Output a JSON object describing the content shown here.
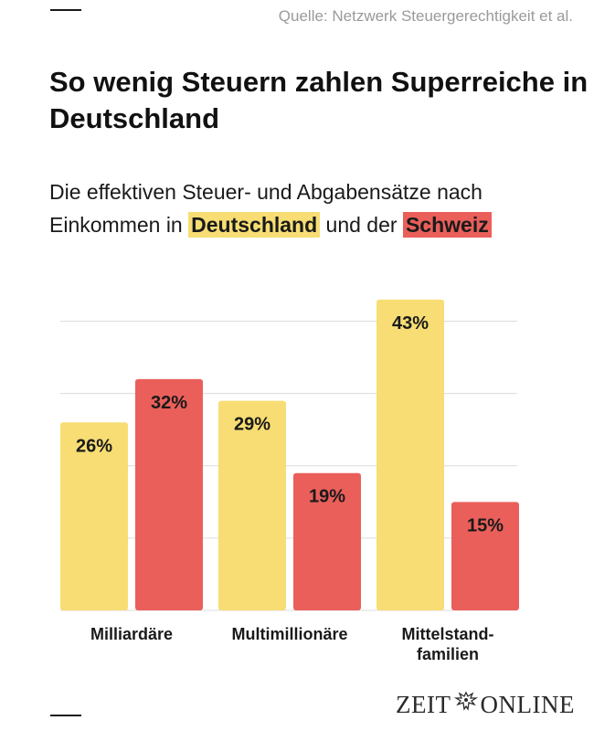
{
  "source": "Quelle: Netzwerk Steuergerechtigkeit et al.",
  "title": "So wenig Steuern zahlen Superreiche in Deutschland",
  "subtitle": {
    "prefix": "Die effektiven Steuer- und Abgabensätze nach Einkommen in",
    "series_de": "Deutschland",
    "middle": "und der",
    "series_ch": "Schweiz"
  },
  "colors": {
    "deutschland": "#f7dd73",
    "schweiz": "#ea5f5a",
    "grid": "#dcdcdc"
  },
  "chart_data": {
    "type": "bar",
    "categories": [
      [
        "Milliardäre"
      ],
      [
        "Multimillionäre"
      ],
      [
        "Mittelstand-",
        "familien"
      ]
    ],
    "series": [
      {
        "name": "Deutschland",
        "values": [
          26,
          29,
          43
        ],
        "labels": [
          "26%",
          "29%",
          "43%"
        ]
      },
      {
        "name": "Schweiz",
        "values": [
          32,
          19,
          15
        ],
        "labels": [
          "32%",
          "19%",
          "15%"
        ]
      }
    ],
    "ylim": [
      0,
      45
    ],
    "grid": true,
    "title": "So wenig Steuern zahlen Superreiche in Deutschland",
    "xlabel": "",
    "ylabel": ""
  },
  "logo": {
    "left": "ZEIT",
    "right": "ONLINE",
    "icon": "eagle-icon"
  }
}
